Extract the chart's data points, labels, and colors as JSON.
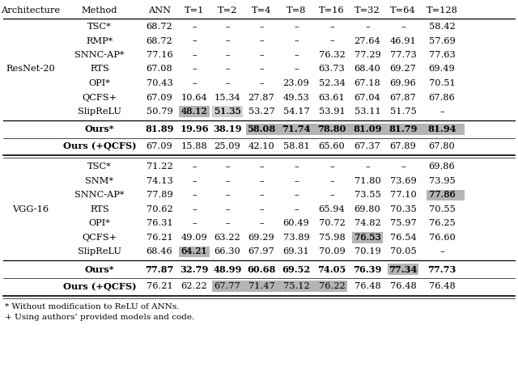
{
  "columns": [
    "Architecture",
    "Method",
    "ANN",
    "T=1",
    "T=2",
    "T=4",
    "T=8",
    "T=16",
    "T=32",
    "T=64",
    "T=128"
  ],
  "resnet20_rows": [
    [
      "TSC*",
      "68.72",
      "–",
      "–",
      "–",
      "–",
      "–",
      "–",
      "–",
      "58.42"
    ],
    [
      "RMP*",
      "68.72",
      "–",
      "–",
      "–",
      "–",
      "–",
      "27.64",
      "46.91",
      "57.69"
    ],
    [
      "SNNC-AP*",
      "77.16",
      "–",
      "–",
      "–",
      "–",
      "76.32",
      "77.29",
      "77.73",
      "77.63"
    ],
    [
      "RTS",
      "67.08",
      "–",
      "–",
      "–",
      "–",
      "63.73",
      "68.40",
      "69.27",
      "69.49"
    ],
    [
      "OPI*",
      "70.43",
      "–",
      "–",
      "–",
      "23.09",
      "52.34",
      "67.18",
      "69.96",
      "70.51"
    ],
    [
      "QCFS+",
      "67.09",
      "10.64",
      "15.34",
      "27.87",
      "49.53",
      "63.61",
      "67.04",
      "67.87",
      "67.86"
    ],
    [
      "SlipReLU",
      "50.79",
      "48.12",
      "51.35",
      "53.27",
      "54.17",
      "53.91",
      "53.11",
      "51.75",
      "–"
    ]
  ],
  "resnet20_ours": [
    "Ours*",
    "81.89",
    "19.96",
    "38.19",
    "58.08",
    "71.74",
    "78.80",
    "81.09",
    "81.79",
    "81.94"
  ],
  "resnet20_ours_qcfs": [
    "Ours (+QCFS)",
    "67.09",
    "15.88",
    "25.09",
    "42.10",
    "58.81",
    "65.60",
    "67.37",
    "67.89",
    "67.80"
  ],
  "vgg16_rows": [
    [
      "TSC*",
      "71.22",
      "–",
      "–",
      "–",
      "–",
      "–",
      "–",
      "–",
      "69.86"
    ],
    [
      "SNM*",
      "74.13",
      "–",
      "–",
      "–",
      "–",
      "–",
      "71.80",
      "73.69",
      "73.95"
    ],
    [
      "SNNC-AP*",
      "77.89",
      "–",
      "–",
      "–",
      "–",
      "–",
      "73.55",
      "77.10",
      "77.86"
    ],
    [
      "RTS",
      "70.62",
      "–",
      "–",
      "–",
      "–",
      "65.94",
      "69.80",
      "70.35",
      "70.55"
    ],
    [
      "OPI*",
      "76.31",
      "–",
      "–",
      "–",
      "60.49",
      "70.72",
      "74.82",
      "75.97",
      "76.25"
    ],
    [
      "QCFS+",
      "76.21",
      "49.09",
      "63.22",
      "69.29",
      "73.89",
      "75.98",
      "76.53",
      "76.54",
      "76.60"
    ],
    [
      "SlipReLU",
      "68.46",
      "64.21",
      "66.30",
      "67.97",
      "69.31",
      "70.09",
      "70.19",
      "70.05",
      "–"
    ]
  ],
  "vgg16_ours": [
    "Ours*",
    "77.87",
    "32.79",
    "48.99",
    "60.68",
    "69.52",
    "74.05",
    "76.39",
    "77.34",
    "77.73"
  ],
  "vgg16_ours_qcfs": [
    "Ours (+QCFS)",
    "76.21",
    "62.22",
    "67.77",
    "71.47",
    "75.12",
    "76.22",
    "76.48",
    "76.48",
    "76.48"
  ],
  "footnote1": "* Without modification to ReLU of ANNs.",
  "footnote2": "+ Using authors’ provided models and code."
}
